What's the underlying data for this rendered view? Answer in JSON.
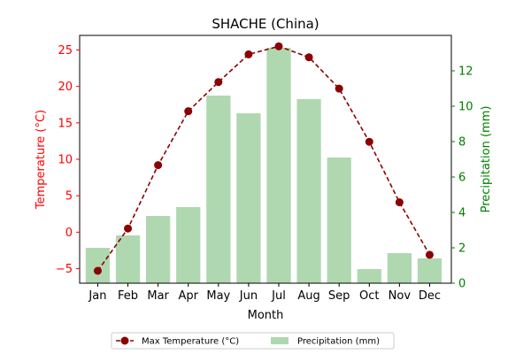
{
  "chart_data": {
    "type": "bar+line",
    "title": "SHACHE (China)",
    "xlabel": "Month",
    "categories": [
      "Jan",
      "Feb",
      "Mar",
      "Apr",
      "May",
      "Jun",
      "Jul",
      "Aug",
      "Sep",
      "Oct",
      "Nov",
      "Dec"
    ],
    "y_left": {
      "label": "Temperature (°C)",
      "color": "#ff0000",
      "ylim": [
        -7,
        27
      ],
      "ticks": [
        -5,
        0,
        5,
        10,
        15,
        20,
        25
      ]
    },
    "y_right": {
      "label": "Precipitation (mm)",
      "color": "#008000",
      "ylim": [
        0,
        14
      ],
      "ticks": [
        0,
        2,
        4,
        6,
        8,
        10,
        12
      ]
    },
    "series": [
      {
        "name": "Max Temperature (°C)",
        "kind": "line",
        "axis": "left",
        "color": "#8b0000",
        "line_style": "dashed",
        "marker": "circle",
        "values": [
          -5.3,
          0.5,
          9.2,
          16.6,
          20.6,
          24.4,
          25.5,
          24.0,
          19.7,
          12.4,
          4.1,
          -3.1
        ]
      },
      {
        "name": "Precipitation (mm)",
        "kind": "bar",
        "axis": "right",
        "color": "#b0d8b0",
        "values": [
          2.0,
          2.7,
          3.8,
          4.3,
          10.6,
          9.6,
          13.3,
          10.4,
          7.1,
          0.8,
          1.7,
          1.4
        ]
      }
    ],
    "legend": {
      "placement": "bottom-center",
      "ncol": 2
    },
    "grid": false
  }
}
